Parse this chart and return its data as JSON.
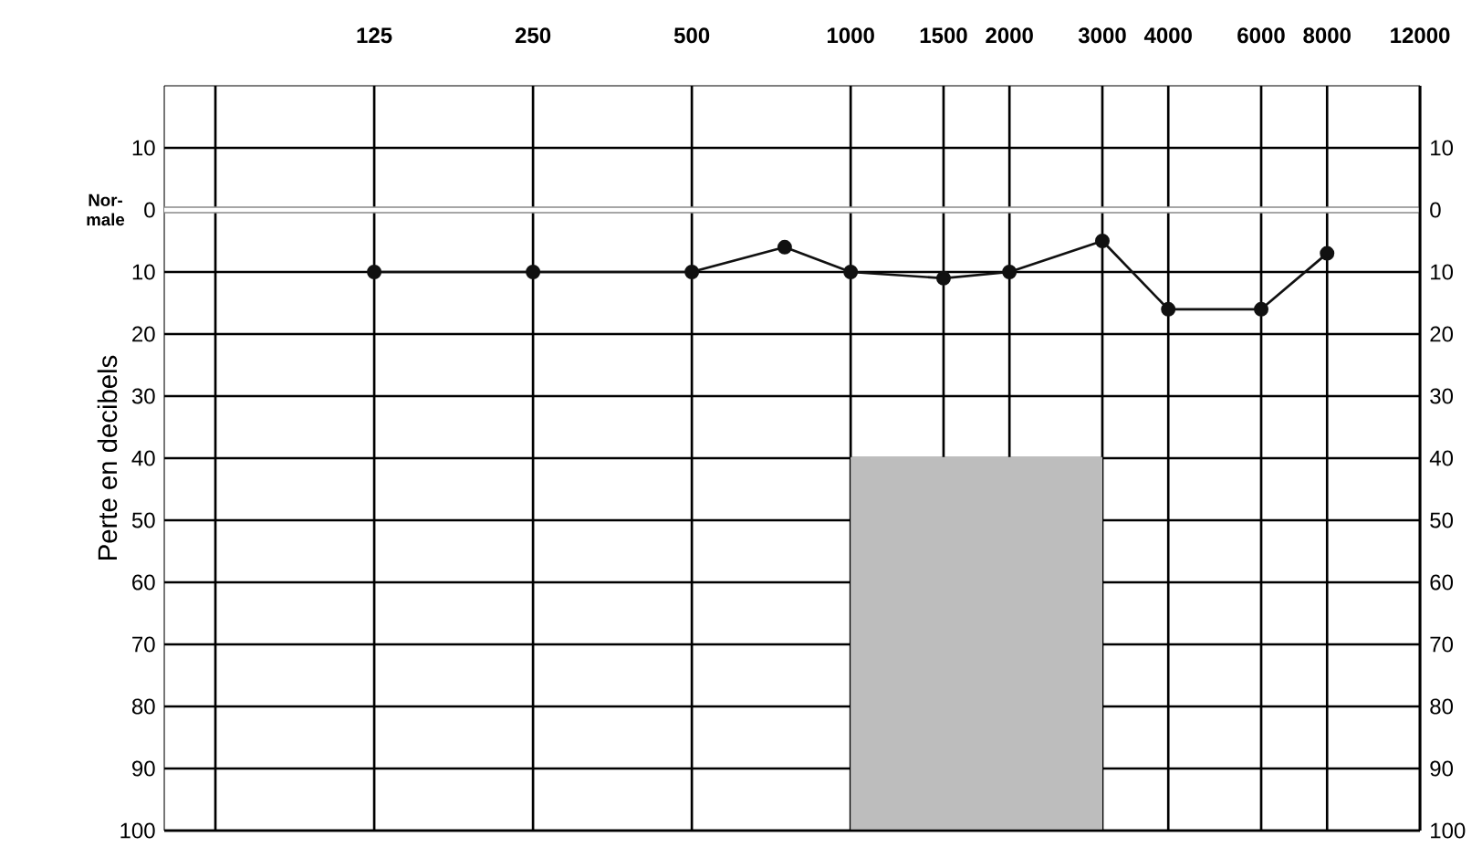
{
  "chart_data": {
    "type": "line",
    "ylabel": "Perte en decibels",
    "log": "x",
    "xlim": [
      50,
      12000
    ],
    "ylim": [
      100,
      -20
    ],
    "y2lim": [
      100,
      -20
    ],
    "xticks": [
      {
        "value": 62.5,
        "label": null
      },
      125,
      250,
      500,
      1000,
      1500,
      2000,
      3000,
      4000,
      6000,
      8000,
      12000
    ],
    "yticks": [
      {
        "value": -10,
        "label": "10"
      },
      0,
      10,
      20,
      30,
      40,
      50,
      60,
      70,
      80,
      90,
      100
    ],
    "y2ticks": [
      {
        "value": -10,
        "label": "10"
      },
      0,
      10,
      20,
      30,
      40,
      50,
      60,
      70,
      80,
      90,
      100
    ],
    "grid": true,
    "line_style": "solid",
    "ref_lines": [
      {
        "axis": "y",
        "value": 0,
        "label": "Nor- male",
        "color": "#888888"
      }
    ],
    "series": [
      {
        "color": "#bdbdbd",
        "x": [
          1000,
          3000
        ],
        "values": [
          40,
          40
        ],
        "lower": [
          40,
          40
        ],
        "upper": [
          100,
          100
        ]
      },
      {
        "marker": "circle",
        "color": "#111111",
        "x": [
          125,
          250,
          500,
          750,
          1000,
          1500,
          2000,
          3000,
          4000,
          6000,
          8000
        ],
        "values": [
          10,
          10,
          10,
          6,
          10,
          11,
          10,
          5,
          16,
          16,
          7
        ]
      }
    ]
  }
}
